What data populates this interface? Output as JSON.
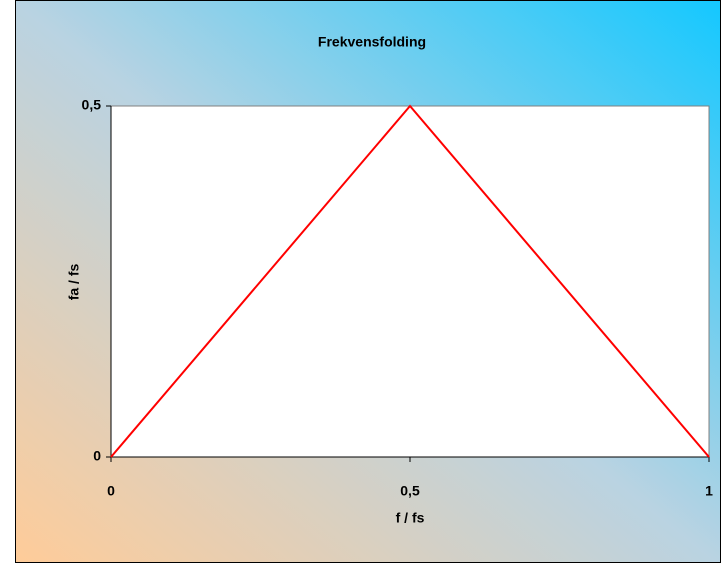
{
  "chart_data": {
    "type": "line",
    "title": "Frekvensfolding",
    "x_label": "f / fs",
    "y_label": "fa / fs",
    "x": [
      0,
      0.5,
      1
    ],
    "series": [
      {
        "name": "fa / fs",
        "color": "#ff0000",
        "values": [
          0,
          0.5,
          0
        ]
      }
    ],
    "xlim": [
      0,
      1
    ],
    "xticks": [
      0,
      {
        "value": 0.5,
        "label": "0,5"
      },
      1
    ],
    "ylim": [
      0,
      0.5
    ],
    "yticks": [
      0,
      {
        "value": 0.5,
        "label": "0,5"
      }
    ],
    "legend": false,
    "grid": false
  }
}
